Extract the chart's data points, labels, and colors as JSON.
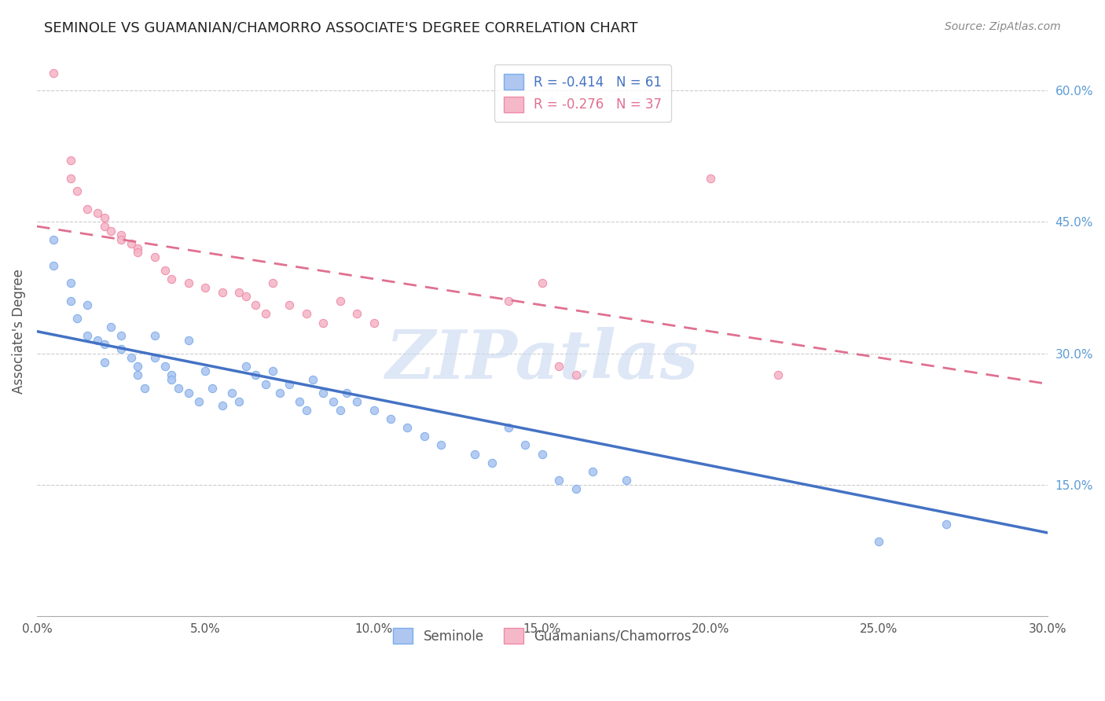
{
  "title": "SEMINOLE VS GUAMANIAN/CHAMORRO ASSOCIATE'S DEGREE CORRELATION CHART",
  "source": "Source: ZipAtlas.com",
  "ylabel": "Associate's Degree",
  "legend": {
    "seminole": {
      "R": "-0.414",
      "N": "61",
      "color": "#aec6f0"
    },
    "guamanian": {
      "R": "-0.276",
      "N": "37",
      "color": "#f4b8c8"
    }
  },
  "seminole_scatter": [
    [
      0.005,
      0.43
    ],
    [
      0.005,
      0.4
    ],
    [
      0.01,
      0.38
    ],
    [
      0.01,
      0.36
    ],
    [
      0.012,
      0.34
    ],
    [
      0.015,
      0.355
    ],
    [
      0.015,
      0.32
    ],
    [
      0.018,
      0.315
    ],
    [
      0.02,
      0.31
    ],
    [
      0.02,
      0.29
    ],
    [
      0.022,
      0.33
    ],
    [
      0.025,
      0.32
    ],
    [
      0.025,
      0.305
    ],
    [
      0.028,
      0.295
    ],
    [
      0.03,
      0.285
    ],
    [
      0.03,
      0.275
    ],
    [
      0.032,
      0.26
    ],
    [
      0.035,
      0.32
    ],
    [
      0.035,
      0.295
    ],
    [
      0.038,
      0.285
    ],
    [
      0.04,
      0.275
    ],
    [
      0.04,
      0.27
    ],
    [
      0.042,
      0.26
    ],
    [
      0.045,
      0.315
    ],
    [
      0.045,
      0.255
    ],
    [
      0.048,
      0.245
    ],
    [
      0.05,
      0.28
    ],
    [
      0.052,
      0.26
    ],
    [
      0.055,
      0.24
    ],
    [
      0.058,
      0.255
    ],
    [
      0.06,
      0.245
    ],
    [
      0.062,
      0.285
    ],
    [
      0.065,
      0.275
    ],
    [
      0.068,
      0.265
    ],
    [
      0.07,
      0.28
    ],
    [
      0.072,
      0.255
    ],
    [
      0.075,
      0.265
    ],
    [
      0.078,
      0.245
    ],
    [
      0.08,
      0.235
    ],
    [
      0.082,
      0.27
    ],
    [
      0.085,
      0.255
    ],
    [
      0.088,
      0.245
    ],
    [
      0.09,
      0.235
    ],
    [
      0.092,
      0.255
    ],
    [
      0.095,
      0.245
    ],
    [
      0.1,
      0.235
    ],
    [
      0.105,
      0.225
    ],
    [
      0.11,
      0.215
    ],
    [
      0.115,
      0.205
    ],
    [
      0.12,
      0.195
    ],
    [
      0.13,
      0.185
    ],
    [
      0.135,
      0.175
    ],
    [
      0.14,
      0.215
    ],
    [
      0.145,
      0.195
    ],
    [
      0.15,
      0.185
    ],
    [
      0.155,
      0.155
    ],
    [
      0.16,
      0.145
    ],
    [
      0.165,
      0.165
    ],
    [
      0.175,
      0.155
    ],
    [
      0.25,
      0.085
    ],
    [
      0.27,
      0.105
    ]
  ],
  "guamanian_scatter": [
    [
      0.005,
      0.62
    ],
    [
      0.01,
      0.52
    ],
    [
      0.01,
      0.5
    ],
    [
      0.012,
      0.485
    ],
    [
      0.015,
      0.465
    ],
    [
      0.018,
      0.46
    ],
    [
      0.02,
      0.455
    ],
    [
      0.02,
      0.445
    ],
    [
      0.022,
      0.44
    ],
    [
      0.025,
      0.435
    ],
    [
      0.025,
      0.43
    ],
    [
      0.028,
      0.425
    ],
    [
      0.03,
      0.42
    ],
    [
      0.03,
      0.415
    ],
    [
      0.035,
      0.41
    ],
    [
      0.038,
      0.395
    ],
    [
      0.04,
      0.385
    ],
    [
      0.045,
      0.38
    ],
    [
      0.05,
      0.375
    ],
    [
      0.055,
      0.37
    ],
    [
      0.06,
      0.37
    ],
    [
      0.062,
      0.365
    ],
    [
      0.065,
      0.355
    ],
    [
      0.068,
      0.345
    ],
    [
      0.07,
      0.38
    ],
    [
      0.075,
      0.355
    ],
    [
      0.08,
      0.345
    ],
    [
      0.085,
      0.335
    ],
    [
      0.09,
      0.36
    ],
    [
      0.095,
      0.345
    ],
    [
      0.1,
      0.335
    ],
    [
      0.14,
      0.36
    ],
    [
      0.15,
      0.38
    ],
    [
      0.155,
      0.285
    ],
    [
      0.16,
      0.275
    ],
    [
      0.2,
      0.5
    ],
    [
      0.22,
      0.275
    ]
  ],
  "seminole_line": {
    "x0": 0.0,
    "y0": 0.325,
    "x1": 0.3,
    "y1": 0.095
  },
  "guamanian_line": {
    "x0": 0.0,
    "y0": 0.445,
    "x1": 0.3,
    "y1": 0.265
  },
  "xlim": [
    0.0,
    0.3
  ],
  "ylim": [
    0.0,
    0.65
  ],
  "xticks": [
    0.0,
    0.05,
    0.1,
    0.15,
    0.2,
    0.25,
    0.3
  ],
  "right_ytick_vals": [
    0.15,
    0.3,
    0.45,
    0.6
  ],
  "right_ytick_labels": [
    "15.0%",
    "30.0%",
    "45.0%",
    "60.0%"
  ],
  "scatter_size": 55,
  "seminole_color": "#aec6f0",
  "guamanian_color": "#f4b8c8",
  "seminole_edge": "#7aadec",
  "guamanian_edge": "#f08aaa",
  "line_blue": "#4472c4",
  "line_pink": "#e07090",
  "bg_color": "#ffffff",
  "watermark": "ZIPatlas",
  "watermark_color": "#c8d8f0",
  "grid_color": "#cccccc"
}
